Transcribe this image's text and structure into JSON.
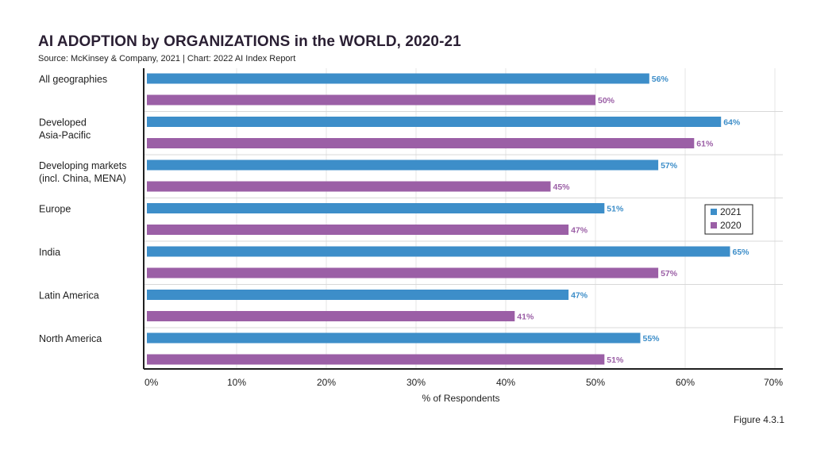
{
  "header": {
    "title": "AI ADOPTION by ORGANIZATIONS in the WORLD, 2020-21",
    "subtitle": "Source: McKinsey & Company, 2021 | Chart: 2022 AI Index Report"
  },
  "footer": {
    "figure_label": "Figure 4.3.1"
  },
  "colors": {
    "series_2021": "#3d8ec9",
    "series_2020": "#9b5fa6"
  },
  "chart_data": {
    "type": "bar",
    "orientation": "horizontal",
    "title": "AI ADOPTION by ORGANIZATIONS in the WORLD, 2020-21",
    "xlabel": "% of Respondents",
    "xlim": [
      0,
      70
    ],
    "xticks": [
      "0%",
      "10%",
      "20%",
      "30%",
      "40%",
      "50%",
      "60%",
      "70%"
    ],
    "grid": true,
    "legend_position": "right",
    "categories": [
      [
        "All geographies"
      ],
      [
        "Developed",
        "Asia-Pacific"
      ],
      [
        "Developing markets",
        "(incl. China, MENA)"
      ],
      [
        "Europe"
      ],
      [
        "India"
      ],
      [
        "Latin America"
      ],
      [
        "North America"
      ]
    ],
    "series": [
      {
        "name": "2021",
        "values": [
          56,
          64,
          57,
          51,
          65,
          47,
          55
        ],
        "labels": [
          "56%",
          "64%",
          "57%",
          "51%",
          "65%",
          "47%",
          "55%"
        ]
      },
      {
        "name": "2020",
        "values": [
          50,
          61,
          45,
          47,
          57,
          41,
          51
        ],
        "labels": [
          "50%",
          "61%",
          "45%",
          "47%",
          "57%",
          "41%",
          "51%"
        ]
      }
    ]
  }
}
